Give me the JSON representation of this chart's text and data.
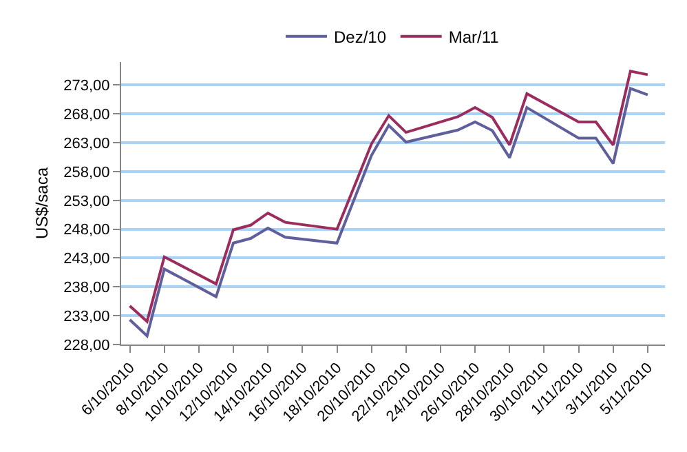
{
  "chart_data": {
    "type": "line",
    "ylabel": "US$/saca",
    "x": [
      "2010-10-06",
      "2010-10-07",
      "2010-10-08",
      "2010-10-11",
      "2010-10-12",
      "2010-10-13",
      "2010-10-14",
      "2010-10-15",
      "2010-10-18",
      "2010-10-20",
      "2010-10-21",
      "2010-10-22",
      "2010-10-25",
      "2010-10-26",
      "2010-10-27",
      "2010-10-28",
      "2010-10-29",
      "2010-11-01",
      "2010-11-02",
      "2010-11-03",
      "2010-11-04",
      "2010-11-05"
    ],
    "series": [
      {
        "name": "Dez/10",
        "color": "#5f5f9c",
        "values": [
          232.3,
          229.5,
          241.1,
          236.3,
          245.6,
          246.4,
          248.2,
          246.6,
          245.6,
          260.8,
          266.0,
          263.1,
          265.2,
          266.6,
          265.1,
          260.4,
          269.1,
          263.8,
          263.8,
          259.4,
          272.4,
          271.3
        ]
      },
      {
        "name": "Mar/11",
        "color": "#9b2d5e",
        "values": [
          234.7,
          232.0,
          243.2,
          238.5,
          247.9,
          248.7,
          250.8,
          249.2,
          248.0,
          262.8,
          267.7,
          264.8,
          267.5,
          269.1,
          267.4,
          262.6,
          271.5,
          266.6,
          266.6,
          262.6,
          275.4,
          274.8
        ]
      }
    ],
    "xlim": [
      "2010-10-05T12:00",
      "2010-11-06"
    ],
    "xticks": [
      {
        "value": "2010-10-06",
        "label": "6/10/2010"
      },
      {
        "value": "2010-10-08",
        "label": "8/10/2010"
      },
      {
        "value": "2010-10-10",
        "label": "10/10/2010"
      },
      {
        "value": "2010-10-12",
        "label": "12/10/2010"
      },
      {
        "value": "2010-10-14",
        "label": "14/10/2010"
      },
      {
        "value": "2010-10-16",
        "label": "16/10/2010"
      },
      {
        "value": "2010-10-18",
        "label": "18/10/2010"
      },
      {
        "value": "2010-10-20",
        "label": "20/10/2010"
      },
      {
        "value": "2010-10-22",
        "label": "22/10/2010"
      },
      {
        "value": "2010-10-24",
        "label": "24/10/2010"
      },
      {
        "value": "2010-10-26",
        "label": "26/10/2010"
      },
      {
        "value": "2010-10-28",
        "label": "28/10/2010"
      },
      {
        "value": "2010-10-30",
        "label": "30/10/2010"
      },
      {
        "value": "2010-11-01",
        "label": "1/11/2010"
      },
      {
        "value": "2010-11-03",
        "label": "3/11/2010"
      },
      {
        "value": "2010-11-05",
        "label": "5/11/2010"
      }
    ],
    "ylim": [
      228,
      277
    ],
    "yticks": [
      {
        "value": 228,
        "label": "228,00"
      },
      {
        "value": 233,
        "label": "233,00"
      },
      {
        "value": 238,
        "label": "238,00"
      },
      {
        "value": 243,
        "label": "243,00"
      },
      {
        "value": 248,
        "label": "248,00"
      },
      {
        "value": 253,
        "label": "253,00"
      },
      {
        "value": 258,
        "label": "258,00"
      },
      {
        "value": 263,
        "label": "263,00"
      },
      {
        "value": 268,
        "label": "268,00"
      },
      {
        "value": 273,
        "label": "273,00"
      }
    ],
    "grid": "y",
    "legend": "top",
    "marker": "none",
    "line_style": "solid"
  }
}
